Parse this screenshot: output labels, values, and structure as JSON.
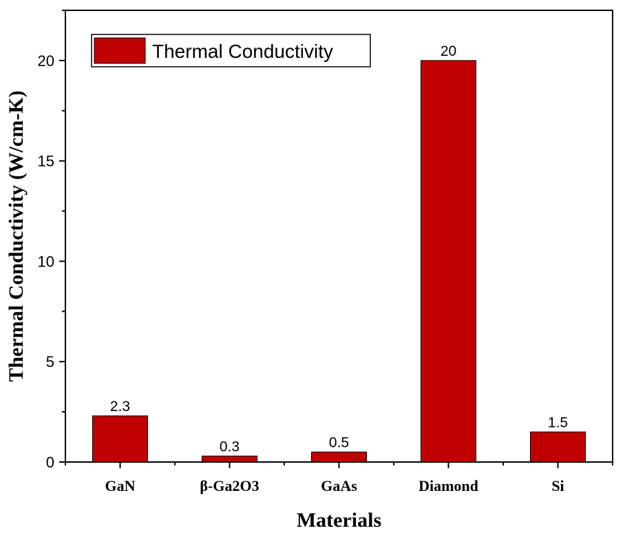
{
  "chart_data": {
    "type": "bar",
    "categories": [
      "GaN",
      "β-Ga2O3",
      "GaAs",
      "Diamond",
      "Si"
    ],
    "series": [
      {
        "name": "Thermal Conductivity",
        "values": [
          2.3,
          0.3,
          0.5,
          20,
          1.5
        ],
        "color": "#c00000"
      }
    ],
    "data_labels": [
      "2.3",
      "0.3",
      "0.5",
      "20",
      "1.5"
    ],
    "xlabel": "Materials",
    "ylabel": "Thermal Conductivity (W/cm-K)",
    "ylim": [
      0,
      22.5
    ],
    "yticks": [
      0,
      5,
      10,
      15,
      20
    ],
    "ytick_labels": [
      "0",
      "5",
      "10",
      "15",
      "20"
    ],
    "grid": false,
    "legend_position": "top-left"
  }
}
